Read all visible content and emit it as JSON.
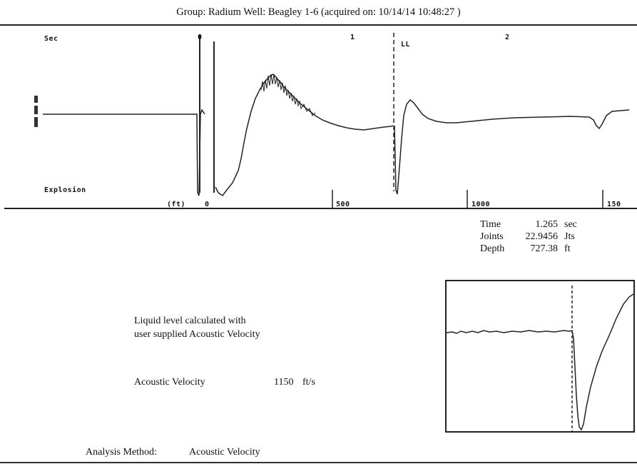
{
  "header": {
    "title": "Group: Radium     Well: Beagley  1-6 (acquired on: 10/14/14 10:48:27 )"
  },
  "trace": {
    "unit_sec": "Sec",
    "time_ticks": [
      "0",
      "1",
      "2"
    ],
    "liquid_marker": "LL",
    "explosion_label": "Explosion",
    "unit_ft": "(ft)",
    "depth_ticks": [
      "0",
      "500",
      "1000",
      "150"
    ],
    "line_color": "#222222",
    "left_axis_icon": "signal-scale-icon"
  },
  "readout": {
    "rows": [
      {
        "label": "Time",
        "value": "1.265",
        "unit": "sec"
      },
      {
        "label": "Joints",
        "value": "22.9456",
        "unit": "Jts"
      },
      {
        "label": "Depth",
        "value": "727.38",
        "unit": "ft"
      }
    ]
  },
  "info": {
    "liquid_line1": "Liquid level calculated with",
    "liquid_line2": "user supplied Acoustic Velocity",
    "velocity_label": "Acoustic Velocity",
    "velocity_value": "1150",
    "velocity_unit": "ft/s",
    "analysis_label": "Analysis Method:",
    "analysis_value": "Acoustic Velocity"
  }
}
